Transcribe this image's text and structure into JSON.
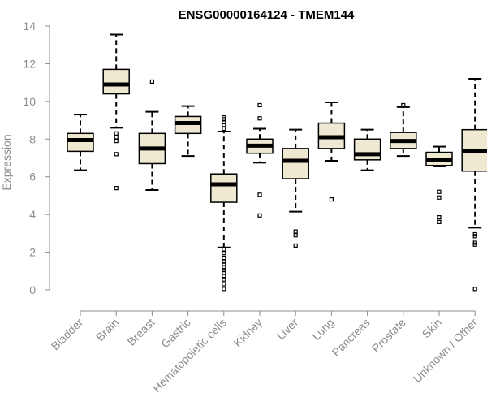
{
  "chart_data": {
    "type": "box",
    "title": "ENSG00000164124 - TMEM144",
    "ylabel": "Expression",
    "xlabel": "",
    "ylim": [
      0,
      14
    ],
    "yticks": [
      0,
      2,
      4,
      6,
      8,
      10,
      12,
      14
    ],
    "grid": false,
    "legend": "none",
    "colors": {
      "box_fill": "#efe9d1",
      "box_stroke": "#000000",
      "axis": "#8c8c8c"
    },
    "categories": [
      "Bladder",
      "Brain",
      "Breast",
      "Gastric",
      "Hematopoietic cells",
      "Kidney",
      "Liver",
      "Lung",
      "Pancreas",
      "Prostate",
      "Skin",
      "Unknown / Other"
    ],
    "boxes": [
      {
        "category": "Bladder",
        "whisker_low": 6.35,
        "q1": 7.35,
        "median": 7.95,
        "q3": 8.3,
        "whisker_high": 9.3,
        "outliers": []
      },
      {
        "category": "Brain",
        "whisker_low": 8.6,
        "q1": 10.4,
        "median": 10.9,
        "q3": 11.7,
        "whisker_high": 13.55,
        "outliers": [
          8.3,
          8.1,
          7.9,
          7.2,
          5.4
        ]
      },
      {
        "category": "Breast",
        "whisker_low": 5.3,
        "q1": 6.7,
        "median": 7.5,
        "q3": 8.3,
        "whisker_high": 9.45,
        "outliers": [
          11.05
        ]
      },
      {
        "category": "Gastric",
        "whisker_low": 7.1,
        "q1": 8.3,
        "median": 8.85,
        "q3": 9.2,
        "whisker_high": 9.75,
        "outliers": []
      },
      {
        "category": "Hematopoietic cells",
        "whisker_low": 2.25,
        "q1": 4.65,
        "median": 5.6,
        "q3": 6.15,
        "whisker_high": 8.4,
        "outliers": [
          9.15,
          9.05,
          8.9,
          8.75,
          8.55,
          2.15,
          1.95,
          1.7,
          1.5,
          1.35,
          1.2,
          1.05,
          0.9,
          0.75,
          0.55,
          0.3,
          0.05
        ]
      },
      {
        "category": "Kidney",
        "whisker_low": 6.75,
        "q1": 7.25,
        "median": 7.65,
        "q3": 8.0,
        "whisker_high": 8.55,
        "outliers": [
          9.8,
          9.1,
          5.05,
          3.95
        ]
      },
      {
        "category": "Liver",
        "whisker_low": 4.15,
        "q1": 5.9,
        "median": 6.85,
        "q3": 7.5,
        "whisker_high": 8.5,
        "outliers": [
          3.1,
          2.9,
          2.35
        ]
      },
      {
        "category": "Lung",
        "whisker_low": 6.85,
        "q1": 7.5,
        "median": 8.1,
        "q3": 8.85,
        "whisker_high": 9.95,
        "outliers": [
          4.8
        ]
      },
      {
        "category": "Pancreas",
        "whisker_low": 6.35,
        "q1": 6.9,
        "median": 7.2,
        "q3": 8.0,
        "whisker_high": 8.5,
        "outliers": []
      },
      {
        "category": "Prostate",
        "whisker_low": 7.1,
        "q1": 7.5,
        "median": 7.9,
        "q3": 8.35,
        "whisker_high": 9.7,
        "outliers": [
          9.8
        ]
      },
      {
        "category": "Skin",
        "whisker_low": 6.55,
        "q1": 6.6,
        "median": 6.9,
        "q3": 7.3,
        "whisker_high": 7.6,
        "outliers": [
          5.2,
          4.9,
          3.85,
          3.6
        ]
      },
      {
        "category": "Unknown / Other",
        "whisker_low": 3.3,
        "q1": 6.3,
        "median": 7.35,
        "q3": 8.5,
        "whisker_high": 11.2,
        "outliers": [
          2.95,
          2.85,
          2.5,
          2.4,
          0.05
        ]
      }
    ]
  }
}
